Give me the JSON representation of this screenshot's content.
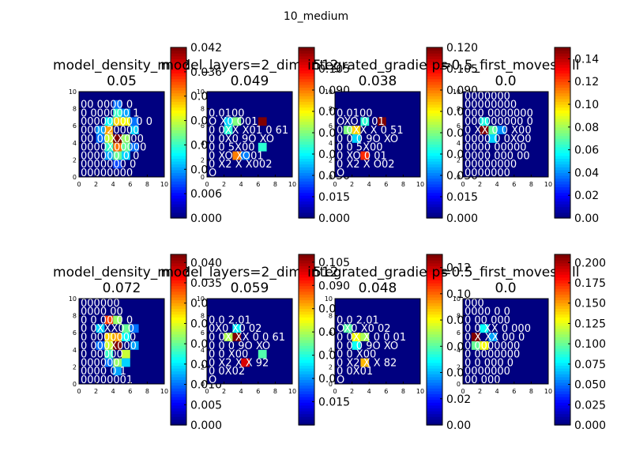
{
  "figure": {
    "suptitle": "10_medium"
  },
  "colormap": "jet",
  "chart_data": [
    {
      "type": "heatmap",
      "title_line1": "model_density_m=2",
      "title_line2": "0.05",
      "xlim": [
        0,
        10
      ],
      "ylim": [
        0,
        10
      ],
      "xticks": [
        "0",
        "2",
        "4",
        "6",
        "8",
        "10"
      ],
      "yticks": [
        "0",
        "2",
        "4",
        "6",
        "8",
        "10"
      ],
      "colorbar": {
        "min": 0.0,
        "max": 0.042,
        "ticks": [
          "0.000",
          "0.006",
          "0.012",
          "0.018",
          "0.024",
          "0.030",
          "0.036",
          "0.042"
        ]
      },
      "hot_cells": [
        {
          "x": 4,
          "y": 4,
          "v": 0.042
        },
        {
          "x": 4,
          "y": 3,
          "v": 0.032
        },
        {
          "x": 3,
          "y": 5,
          "v": 0.03
        },
        {
          "x": 5,
          "y": 6,
          "v": 0.026
        },
        {
          "x": 4,
          "y": 6,
          "v": 0.028
        },
        {
          "x": 3,
          "y": 4,
          "v": 0.024
        },
        {
          "x": 5,
          "y": 4,
          "v": 0.022
        },
        {
          "x": 4,
          "y": 2,
          "v": 0.02
        },
        {
          "x": 3,
          "y": 3,
          "v": 0.018
        },
        {
          "x": 5,
          "y": 3,
          "v": 0.02
        },
        {
          "x": 4,
          "y": 7,
          "v": 0.018
        },
        {
          "x": 3,
          "y": 6,
          "v": 0.016
        },
        {
          "x": 6,
          "y": 5,
          "v": 0.014
        },
        {
          "x": 2,
          "y": 5,
          "v": 0.012
        },
        {
          "x": 5,
          "y": 2,
          "v": 0.014
        },
        {
          "x": 4,
          "y": 8,
          "v": 0.01
        },
        {
          "x": 5,
          "y": 7,
          "v": 0.012
        },
        {
          "x": 2,
          "y": 4,
          "v": 0.01
        },
        {
          "x": 6,
          "y": 3,
          "v": 0.01
        },
        {
          "x": 3,
          "y": 2,
          "v": 0.012
        },
        {
          "x": 6,
          "y": 6,
          "v": 0.01
        },
        {
          "x": 4,
          "y": 1,
          "v": 0.008
        }
      ],
      "board": [
        "",
        "00 0000 0",
        "0 000000 1",
        "00000000 0 0",
        "000020000",
        "00 00XX000",
        "0000X00000",
        "000000 0 0",
        "0000000 0",
        "00000000"
      ]
    },
    {
      "type": "heatmap",
      "title_line1": "model_layers=2_dim=512",
      "title_line2": "0.049",
      "xlim": [
        0,
        10
      ],
      "ylim": [
        0,
        10
      ],
      "xticks": [
        "0",
        "2",
        "4",
        "6",
        "8",
        "10"
      ],
      "yticks": [
        "0",
        "2",
        "4",
        "6",
        "8",
        "10"
      ],
      "colorbar": {
        "min": 0.0,
        "max": 0.12,
        "ticks": [
          "0.000",
          "0.015",
          "0.030",
          "0.045",
          "0.060",
          "0.075",
          "0.090",
          "0.105"
        ]
      },
      "hot_cells": [
        {
          "x": 6,
          "y": 6,
          "v": 0.12
        },
        {
          "x": 3,
          "y": 6,
          "v": 0.06
        },
        {
          "x": 2,
          "y": 5,
          "v": 0.05
        },
        {
          "x": 3,
          "y": 2,
          "v": 0.09
        },
        {
          "x": 6,
          "y": 3,
          "v": 0.05
        },
        {
          "x": 2,
          "y": 6,
          "v": 0.04
        },
        {
          "x": 4,
          "y": 2,
          "v": 0.03
        }
      ],
      "board": [
        "",
        "",
        "0.0100",
        "O X0 O01",
        "0 0XX X01 0 61",
        "0 0X0 9O XO",
        "0 0 5X00",
        "0 XO XO01",
        "0 X2 X X002",
        "O"
      ]
    },
    {
      "type": "heatmap",
      "title_line1": "integrated_gradients",
      "title_line2": "0.038",
      "xlim": [
        0,
        10
      ],
      "ylim": [
        0,
        10
      ],
      "xticks": [
        "0",
        "2",
        "4",
        "6",
        "8",
        "10"
      ],
      "yticks": [
        "0",
        "2",
        "4",
        "6",
        "8",
        "10"
      ],
      "colorbar": {
        "min": 0.0,
        "max": 0.12,
        "ticks": [
          "0.000",
          "0.015",
          "0.030",
          "0.045",
          "0.060",
          "0.075",
          "0.090",
          "0.105",
          "0.120"
        ]
      },
      "hot_cells": [
        {
          "x": 5,
          "y": 6,
          "v": 0.12
        },
        {
          "x": 2,
          "y": 5,
          "v": 0.08
        },
        {
          "x": 3,
          "y": 2,
          "v": 0.1
        },
        {
          "x": 1,
          "y": 5,
          "v": 0.06
        },
        {
          "x": 3,
          "y": 6,
          "v": 0.05
        },
        {
          "x": 2,
          "y": 4,
          "v": 0.04
        }
      ],
      "board": [
        "",
        "",
        "0.0100",
        "OXO 0 01",
        "0 0XX X 0 51",
        "0 0 0 9O XO",
        "0 0 5X00",
        "0 XO 0 01",
        "0 X2 X O02",
        "O"
      ]
    },
    {
      "type": "heatmap",
      "title_line1": "p=0.5_first_moves_all",
      "title_line2": "0.0",
      "xlim": [
        0,
        10
      ],
      "ylim": [
        0,
        10
      ],
      "xticks": [
        "0",
        "2",
        "4",
        "6",
        "8",
        "10"
      ],
      "yticks": [
        "0",
        "2",
        "4",
        "6",
        "8",
        "10"
      ],
      "colorbar": {
        "min": 0.0,
        "max": 0.15,
        "ticks": [
          "0.00",
          "0.02",
          "0.04",
          "0.06",
          "0.08",
          "0.10",
          "0.12",
          "0.14"
        ]
      },
      "hot_cells": [
        {
          "x": 2,
          "y": 5,
          "v": 0.15
        },
        {
          "x": 3,
          "y": 5,
          "v": 0.07
        },
        {
          "x": 2,
          "y": 6,
          "v": 0.06
        },
        {
          "x": 3,
          "y": 4,
          "v": 0.05
        },
        {
          "x": 4,
          "y": 5,
          "v": 0.04
        }
      ],
      "board": [
        "0000000",
        "00000000",
        "000 0000000",
        "000000000 0",
        "0 XX 0 0 X00",
        "0000 0 0XO0",
        "0000 00000",
        "0000 000 00",
        "00000000",
        "0000000"
      ]
    },
    {
      "type": "heatmap",
      "title_line1": "model_density_m=2",
      "title_line2": "0.072",
      "xlim": [
        0,
        10
      ],
      "ylim": [
        0,
        10
      ],
      "xticks": [
        "0",
        "2",
        "4",
        "6",
        "8",
        "10"
      ],
      "yticks": [
        "0",
        "2",
        "4",
        "6",
        "8",
        "10"
      ],
      "colorbar": {
        "min": 0.0,
        "max": 0.042,
        "ticks": [
          "0.000",
          "0.005",
          "0.010",
          "0.015",
          "0.020",
          "0.025",
          "0.030",
          "0.035",
          "0.040"
        ]
      },
      "hot_cells": [
        {
          "x": 4,
          "y": 4,
          "v": 0.042
        },
        {
          "x": 3,
          "y": 7,
          "v": 0.034
        },
        {
          "x": 4,
          "y": 5,
          "v": 0.03
        },
        {
          "x": 3,
          "y": 5,
          "v": 0.028
        },
        {
          "x": 5,
          "y": 3,
          "v": 0.024
        },
        {
          "x": 4,
          "y": 2,
          "v": 0.022
        },
        {
          "x": 3,
          "y": 4,
          "v": 0.024
        },
        {
          "x": 5,
          "y": 6,
          "v": 0.02
        },
        {
          "x": 4,
          "y": 7,
          "v": 0.022
        },
        {
          "x": 3,
          "y": 3,
          "v": 0.018
        },
        {
          "x": 5,
          "y": 5,
          "v": 0.016
        },
        {
          "x": 2,
          "y": 6,
          "v": 0.014
        },
        {
          "x": 6,
          "y": 4,
          "v": 0.012
        },
        {
          "x": 4,
          "y": 1,
          "v": 0.012
        },
        {
          "x": 5,
          "y": 2,
          "v": 0.014
        },
        {
          "x": 3,
          "y": 2,
          "v": 0.01
        },
        {
          "x": 6,
          "y": 6,
          "v": 0.01
        },
        {
          "x": 2,
          "y": 4,
          "v": 0.01
        }
      ],
      "board": [
        "000000",
        "0000 00",
        "0 0 00 0 0",
        "0 0XXX0 0",
        "0 0000000",
        "0 000X000",
        "0 00000",
        "000000",
        "0000 0 1",
        "00000001"
      ]
    },
    {
      "type": "heatmap",
      "title_line1": "model_layers=2_dim=512",
      "title_line2": "0.059",
      "xlim": [
        0,
        10
      ],
      "ylim": [
        0,
        10
      ],
      "xticks": [
        "0",
        "2",
        "4",
        "6",
        "8",
        "10"
      ],
      "yticks": [
        "0",
        "2",
        "4",
        "6",
        "8",
        "10"
      ],
      "colorbar": {
        "min": 0.0,
        "max": 0.11,
        "ticks": [
          "0.015",
          "0.030",
          "0.045",
          "0.060",
          "0.075",
          "0.090",
          "0.105"
        ]
      },
      "hot_cells": [
        {
          "x": 3,
          "y": 5,
          "v": 0.11
        },
        {
          "x": 4,
          "y": 2,
          "v": 0.1
        },
        {
          "x": 2,
          "y": 5,
          "v": 0.06
        },
        {
          "x": 6,
          "y": 3,
          "v": 0.05
        },
        {
          "x": 3,
          "y": 6,
          "v": 0.04
        }
      ],
      "board": [
        "",
        "",
        "0.0 2.01",
        "0X0 X0 02",
        "0 0X XX 0 0 61",
        "0 0 0 9O XO",
        "0 0 X00",
        "0 X2 X X 92",
        "0 0X02",
        "O"
      ]
    },
    {
      "type": "heatmap",
      "title_line1": "integrated_gradients",
      "title_line2": "0.048",
      "xlim": [
        0,
        10
      ],
      "ylim": [
        0,
        10
      ],
      "xticks": [
        "0",
        "2",
        "4",
        "6",
        "8",
        "10"
      ],
      "yticks": [
        "0",
        "2",
        "4",
        "6",
        "8",
        "10"
      ],
      "colorbar": {
        "min": 0.0,
        "max": 0.13,
        "ticks": [
          "0.00",
          "0.02",
          "0.04",
          "0.06",
          "0.08",
          "0.10",
          "0.12"
        ]
      },
      "hot_cells": [
        {
          "x": 2,
          "y": 5,
          "v": 0.08
        },
        {
          "x": 3,
          "y": 5,
          "v": 0.07
        },
        {
          "x": 3,
          "y": 2,
          "v": 0.09
        },
        {
          "x": 1,
          "y": 6,
          "v": 0.06
        },
        {
          "x": 2,
          "y": 4,
          "v": 0.05
        }
      ],
      "board": [
        "",
        "",
        "0.0 2.01",
        "OX0 X0 02",
        "0 0X X 0 0 01",
        "0 0 0 9O XO",
        "0 0 X00",
        "0 X2 X X 82",
        "0 0X01",
        "O"
      ]
    },
    {
      "type": "heatmap",
      "title_line1": "p=0.5_first_moves_all",
      "title_line2": "0.0",
      "xlim": [
        0,
        10
      ],
      "ylim": [
        0,
        10
      ],
      "xticks": [
        "0",
        "2",
        "4",
        "6",
        "8",
        "10"
      ],
      "yticks": [
        "0",
        "2",
        "4",
        "6",
        "8",
        "10"
      ],
      "colorbar": {
        "min": 0.0,
        "max": 0.21,
        "ticks": [
          "0.000",
          "0.025",
          "0.050",
          "0.075",
          "0.100",
          "0.125",
          "0.150",
          "0.175",
          "0.200"
        ]
      },
      "hot_cells": [
        {
          "x": 1,
          "y": 5,
          "v": 0.21
        },
        {
          "x": 2,
          "y": 4,
          "v": 0.13
        },
        {
          "x": 1,
          "y": 4,
          "v": 0.1
        },
        {
          "x": 2,
          "y": 6,
          "v": 0.08
        },
        {
          "x": 3,
          "y": 5,
          "v": 0.06
        }
      ],
      "board": [
        "000",
        "0000 0 0",
        "0 00 000",
        "0 0 XX 0 000",
        "0 X XX 00 0",
        "0 0000000",
        "0 0000000",
        "0 0 000 0",
        "0000000",
        "00 000"
      ]
    }
  ]
}
